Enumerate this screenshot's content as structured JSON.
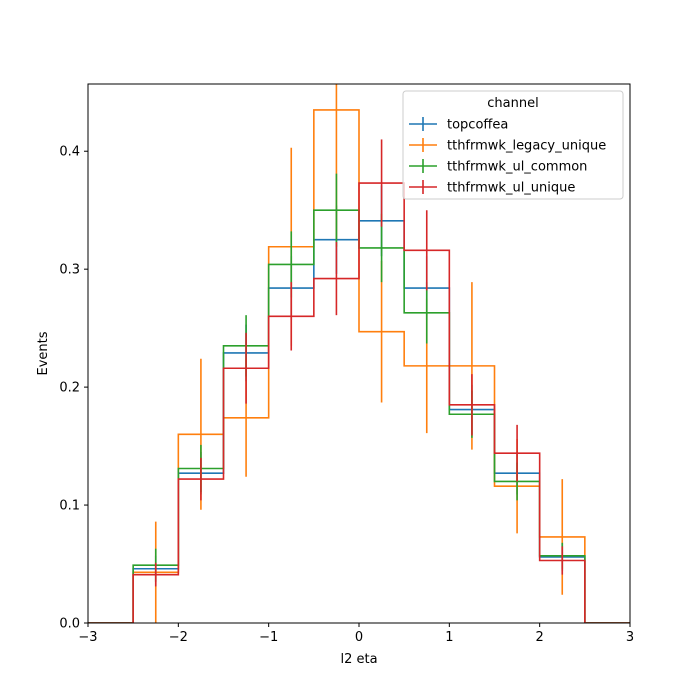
{
  "chart_data": {
    "type": "step-histogram",
    "xlabel": "l2 eta",
    "ylabel": "Events",
    "xlim": [
      -3,
      3
    ],
    "ylim": [
      0,
      0.457
    ],
    "xticks": [
      "−3",
      "−2",
      "−1",
      "0",
      "1",
      "2",
      "3"
    ],
    "yticks": [
      "0.0",
      "0.1",
      "0.2",
      "0.3",
      "0.4"
    ],
    "bin_edges": [
      -3.0,
      -2.5,
      -2.0,
      -1.5,
      -1.0,
      -0.5,
      0.0,
      0.5,
      1.0,
      1.5,
      2.0,
      2.5,
      3.0
    ],
    "legend": {
      "title": "channel",
      "placement": "top-right"
    },
    "series": [
      {
        "name": "topcoffea",
        "color": "#1f77b4",
        "values": [
          0.0,
          0.046,
          0.127,
          0.229,
          0.284,
          0.325,
          0.341,
          0.284,
          0.181,
          0.127,
          0.056,
          0.0
        ],
        "errors": [
          0.0,
          0.011,
          0.018,
          0.024,
          0.027,
          0.029,
          0.03,
          0.027,
          0.021,
          0.018,
          0.012,
          0.0
        ]
      },
      {
        "name": "tthfrmwk_legacy_unique",
        "color": "#ff7f0e",
        "values": [
          0.0,
          0.043,
          0.16,
          0.174,
          0.319,
          0.435,
          0.247,
          0.218,
          0.218,
          0.116,
          0.073,
          0.0
        ],
        "errors": [
          0.0,
          0.043,
          0.064,
          0.05,
          0.084,
          0.109,
          0.06,
          0.057,
          0.071,
          0.04,
          0.049,
          0.0
        ]
      },
      {
        "name": "tthfrmwk_ul_common",
        "color": "#2ca02c",
        "values": [
          0.0,
          0.049,
          0.131,
          0.235,
          0.304,
          0.35,
          0.318,
          0.263,
          0.177,
          0.12,
          0.057,
          0.0
        ],
        "errors": [
          0.0,
          0.014,
          0.02,
          0.026,
          0.028,
          0.031,
          0.029,
          0.026,
          0.02,
          0.016,
          0.011,
          0.0
        ]
      },
      {
        "name": "tthfrmwk_ul_unique",
        "color": "#d62728",
        "values": [
          0.0,
          0.041,
          0.122,
          0.216,
          0.26,
          0.292,
          0.373,
          0.316,
          0.185,
          0.144,
          0.053,
          0.0
        ],
        "errors": [
          0.0,
          0.01,
          0.018,
          0.03,
          0.029,
          0.031,
          0.037,
          0.034,
          0.026,
          0.024,
          0.012,
          0.0
        ]
      }
    ]
  }
}
